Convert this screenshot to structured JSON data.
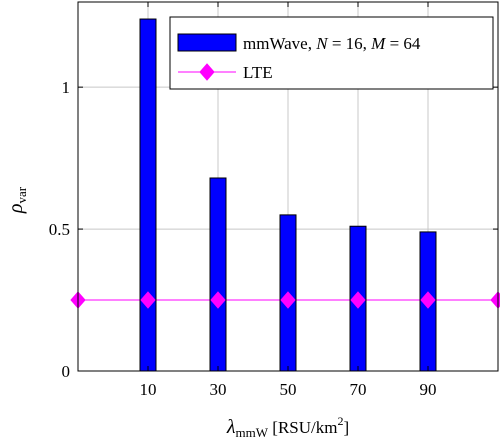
{
  "chart_data": {
    "type": "bar",
    "x": [
      10,
      30,
      50,
      70,
      90
    ],
    "xlim": [
      -10,
      110
    ],
    "ylim": [
      0,
      1.3
    ],
    "x_ticks": [
      "10",
      "30",
      "50",
      "70",
      "90"
    ],
    "y_ticks": [
      {
        "value": 0,
        "label": "0"
      },
      {
        "value": 0.5,
        "label": "0.5"
      },
      {
        "value": 1,
        "label": "1"
      }
    ],
    "grid": true,
    "legend_position": "top-right",
    "xlabel": {
      "main": "λ",
      "sub": "mmW",
      "unit_pre": "[RSU/km",
      "unit_sup": "2",
      "unit_post": "]"
    },
    "ylabel": {
      "main": "ρ",
      "sub": "var"
    },
    "series": [
      {
        "name": "mmWave, N = 16, M = 64",
        "legend": {
          "pre": "mmWave, ",
          "v1": "N",
          "mid1": " = 16, ",
          "v2": "M",
          "mid2": " = 64"
        },
        "type": "bar",
        "color": "#0000ff",
        "values": [
          1.24,
          0.68,
          0.55,
          0.51,
          0.49
        ]
      },
      {
        "name": "LTE",
        "type": "line",
        "marker": "diamond",
        "color": "#ff00ff",
        "x": [
          -10,
          10,
          30,
          50,
          70,
          90,
          110
        ],
        "values": [
          0.25,
          0.25,
          0.25,
          0.25,
          0.25,
          0.25,
          0.25
        ]
      }
    ]
  }
}
